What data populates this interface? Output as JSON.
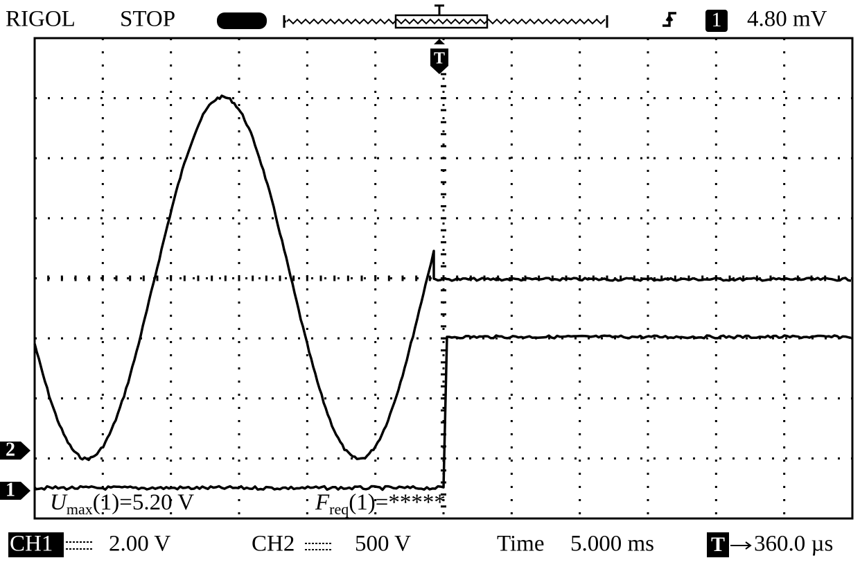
{
  "header": {
    "brand": "RIGOL",
    "status": "STOP",
    "trigger_source": "1",
    "trigger_level": "4.80 mV"
  },
  "trigger_marker": "T",
  "channel_markers": [
    "2",
    "1"
  ],
  "measurements": [
    {
      "symbol": "U",
      "subscript": "max",
      "text": "(1)=5.20 V"
    },
    {
      "symbol": "F",
      "subscript": "req",
      "text": "(1)=*****"
    }
  ],
  "footer": {
    "ch1_label": "CH1",
    "ch1_scale": "2.00 V",
    "ch2_label": "CH2",
    "ch2_scale": "500 V",
    "time_label": "Time",
    "time_scale": "5.000 ms",
    "trigger_label": "T",
    "trigger_offset": "360.0 µs"
  }
}
